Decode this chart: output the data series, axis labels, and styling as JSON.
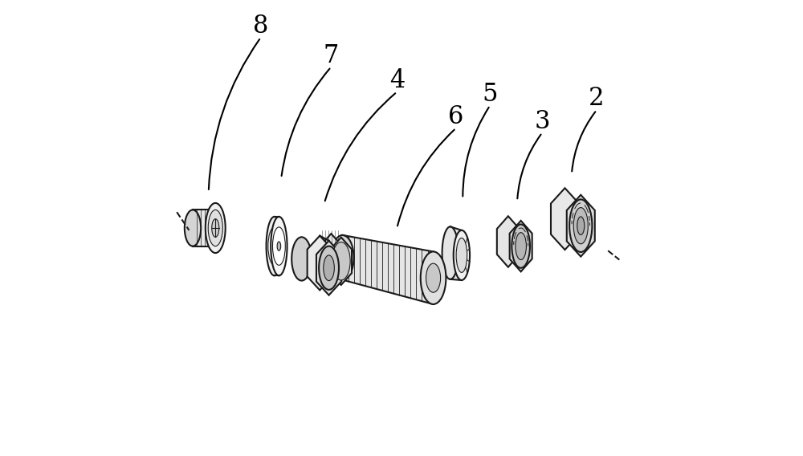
{
  "background_color": "#ffffff",
  "line_color": "#1a1a1a",
  "label_color": "#000000",
  "label_fontsize": 22,
  "leader_line_color": "#000000",
  "figsize": [
    10.0,
    5.68
  ],
  "dpi": 100
}
